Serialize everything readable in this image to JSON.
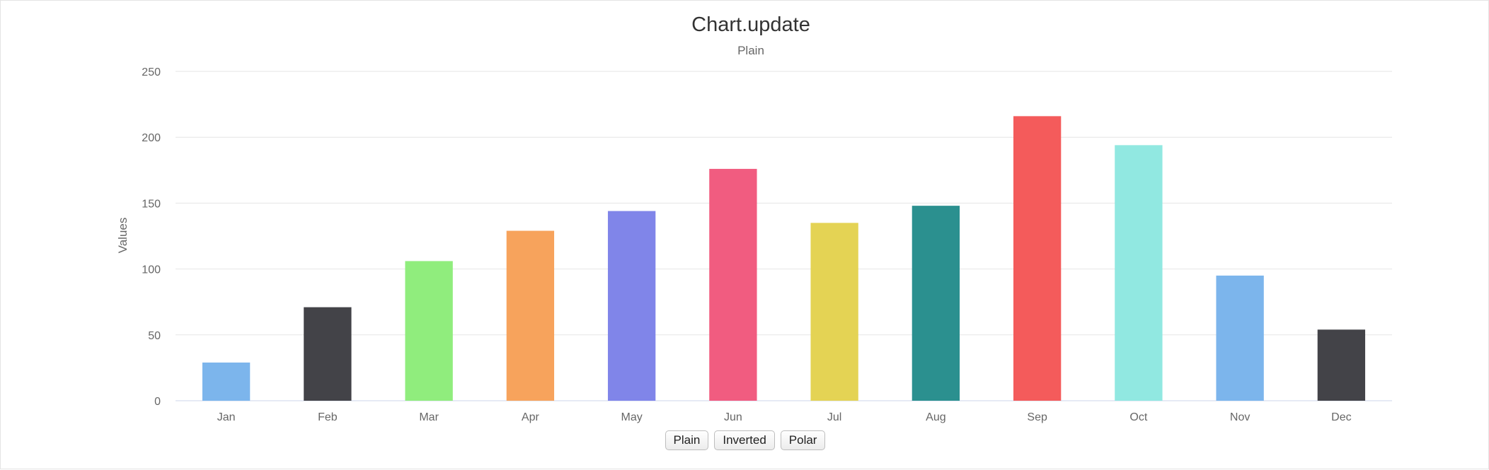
{
  "chart_data": {
    "type": "bar",
    "title": "Chart.update",
    "subtitle": "Plain",
    "xlabel": "",
    "ylabel": "Values",
    "ylim": [
      0,
      250
    ],
    "yticks": [
      0,
      50,
      100,
      150,
      200,
      250
    ],
    "grid": true,
    "categories": [
      "Jan",
      "Feb",
      "Mar",
      "Apr",
      "May",
      "Jun",
      "Jul",
      "Aug",
      "Sep",
      "Oct",
      "Nov",
      "Dec"
    ],
    "values": [
      29,
      71,
      106,
      129,
      144,
      176,
      135,
      148,
      216,
      194,
      95,
      54
    ],
    "colors": [
      "#7cb5ec",
      "#434348",
      "#90ed7d",
      "#f7a35c",
      "#8085e9",
      "#f15c80",
      "#e4d354",
      "#2b908f",
      "#f45b5b",
      "#91e8e1",
      "#7cb5ec",
      "#434348"
    ]
  },
  "controls": {
    "plain_label": "Plain",
    "inverted_label": "Inverted",
    "polar_label": "Polar"
  }
}
